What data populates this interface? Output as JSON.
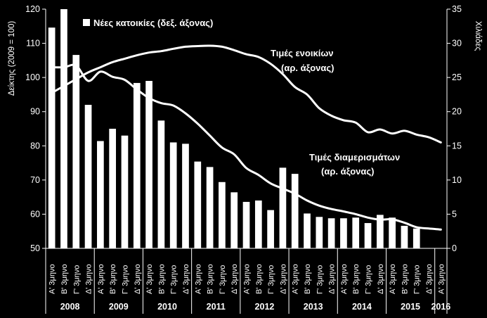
{
  "chart_data": {
    "type": "bar",
    "categories": [
      "Α' 3μηνο",
      "Β' 3μηνο",
      "Γ' 3μηνο",
      "Δ' 3μηνο",
      "Α' 3μηνο",
      "Β' 3μηνο",
      "Γ' 3μηνο",
      "Δ' 3μηνο",
      "Α' 3μηνο",
      "Β' 3μηνο",
      "Γ' 3μηνο",
      "Δ' 3μηνο",
      "Α' 3μηνο",
      "Β' 3μηνο",
      "Γ' 3μηνο",
      "Δ' 3μηνο",
      "Α' 3μηνο",
      "Β' 3μηνο",
      "Γ' 3μηνο",
      "Δ' 3μηνο",
      "Α' 3μηνο",
      "Β' 3μηνο",
      "Γ' 3μηνο",
      "Δ' 3μηνο",
      "Α' 3μηνο",
      "Β' 3μηνο",
      "Γ' 3μηνο",
      "Δ' 3μηνο",
      "Α' 3μηνο",
      "Β' 3μηνο",
      "Γ' 3μηνο",
      "Δ' 3μηνο",
      "Α' 3μηνο"
    ],
    "years": [
      {
        "label": "2008",
        "start": 0,
        "count": 4
      },
      {
        "label": "2009",
        "start": 4,
        "count": 4
      },
      {
        "label": "2010",
        "start": 8,
        "count": 4
      },
      {
        "label": "2011",
        "start": 12,
        "count": 4
      },
      {
        "label": "2012",
        "start": 16,
        "count": 4
      },
      {
        "label": "2013",
        "start": 20,
        "count": 4
      },
      {
        "label": "2014",
        "start": 24,
        "count": 4
      },
      {
        "label": "2015",
        "start": 28,
        "count": 4
      },
      {
        "label": "2016",
        "start": 32,
        "count": 1
      }
    ],
    "series": [
      {
        "name": "Νέες κατοικίες (δεξ. άξονας)",
        "type": "bar",
        "axis": "right",
        "color": "#ffffff",
        "values": [
          32.3,
          35,
          28.3,
          21,
          15.7,
          17.5,
          16.5,
          24.2,
          24.5,
          18.7,
          15.5,
          15.3,
          12.7,
          11.9,
          9.7,
          8.2,
          6.8,
          7.0,
          5.6,
          11.8,
          10.9,
          5.1,
          4.6,
          4.4,
          4.4,
          4.5,
          3.7,
          4.9,
          4.5,
          3.3,
          2.9,
          null,
          null
        ]
      },
      {
        "name": "Τιμές ενοικίων (αρ. άξονας)",
        "type": "line",
        "axis": "left",
        "color": "#ffffff",
        "values": [
          95.5,
          97.5,
          99.5,
          101.5,
          103.0,
          104.5,
          105.5,
          106.5,
          107.3,
          107.7,
          108.4,
          109.0,
          109.2,
          109.3,
          109.0,
          108.0,
          106.8,
          106.0,
          104.0,
          101.0,
          97.2,
          95.0,
          91.0,
          88.8,
          87.5,
          86.8,
          84.0,
          84.8,
          83.6,
          84.4,
          83.3,
          82.5,
          81.0
        ]
      },
      {
        "name": "Τιμές διαμερισμάτων (αρ. άξονας)",
        "type": "line",
        "axis": "left",
        "color": "#ffffff",
        "values": [
          103.0,
          103.0,
          103.5,
          99.0,
          101.7,
          100.2,
          99.3,
          96.5,
          94.0,
          92.5,
          91.8,
          89.5,
          86.5,
          83.0,
          79.5,
          77.5,
          73.5,
          71.5,
          69.0,
          67.5,
          66.0,
          64.0,
          62.5,
          61.5,
          60.8,
          60.0,
          59.0,
          58.4,
          58.5,
          57.5,
          56.2,
          55.8,
          55.5
        ]
      }
    ],
    "y_left": {
      "label": "Δείκτης (2009 = 100)",
      "min": 50,
      "max": 120,
      "ticks": [
        50,
        60,
        70,
        80,
        90,
        100,
        110,
        120
      ]
    },
    "y_right": {
      "label": "Χιλιάδες",
      "min": 0,
      "max": 35,
      "ticks": [
        0,
        5,
        10,
        15,
        20,
        25,
        30,
        35
      ]
    },
    "legend": {
      "label": "Νέες κατοικίες (δεξ. άξονας)",
      "position": "top-left"
    },
    "annotations": [
      {
        "line1": "Τιμές ενοικίων",
        "line2": "(αρ. άξονας)"
      },
      {
        "line1": "Τιμές διαμερισμάτων",
        "line2": "(αρ. άξονας)"
      }
    ],
    "grid": false,
    "background": "#000000",
    "foreground": "#ffffff"
  }
}
